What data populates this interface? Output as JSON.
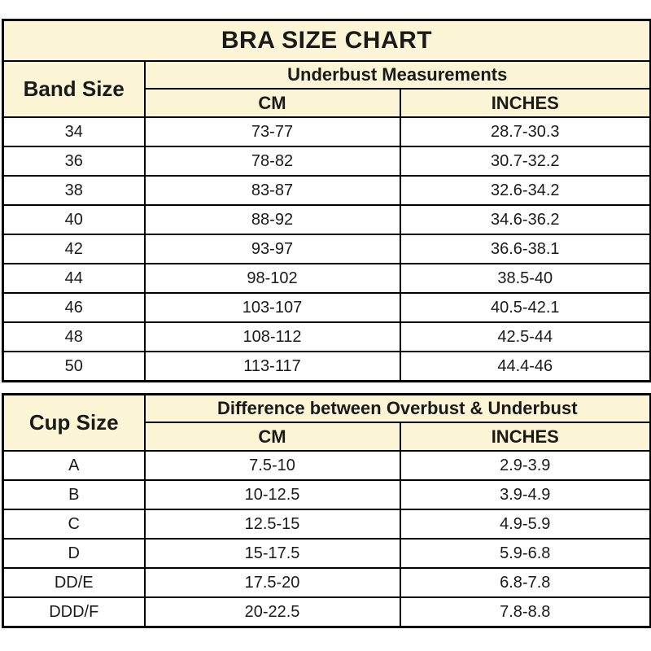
{
  "colors": {
    "header_fill": "#FBF5D6",
    "border": "#000000",
    "text": "#1a1a1a",
    "background": "#ffffff"
  },
  "band_table": {
    "title": "BRA SIZE CHART",
    "row_header": "Band Size",
    "group_header": "Underbust Measurements",
    "col_cm": "CM",
    "col_inches": "INCHES",
    "rows": [
      {
        "band": "34",
        "cm": "73-77",
        "inches": "28.7-30.3"
      },
      {
        "band": "36",
        "cm": "78-82",
        "inches": "30.7-32.2"
      },
      {
        "band": "38",
        "cm": "83-87",
        "inches": "32.6-34.2"
      },
      {
        "band": "40",
        "cm": "88-92",
        "inches": "34.6-36.2"
      },
      {
        "band": "42",
        "cm": "93-97",
        "inches": "36.6-38.1"
      },
      {
        "band": "44",
        "cm": "98-102",
        "inches": "38.5-40"
      },
      {
        "band": "46",
        "cm": "103-107",
        "inches": "40.5-42.1"
      },
      {
        "band": "48",
        "cm": "108-112",
        "inches": "42.5-44"
      },
      {
        "band": "50",
        "cm": "113-117",
        "inches": "44.4-46"
      }
    ]
  },
  "cup_table": {
    "row_header": "Cup Size",
    "group_header": "Difference between Overbust & Underbust",
    "col_cm": "CM",
    "col_inches": "INCHES",
    "rows": [
      {
        "cup": "A",
        "cm": "7.5-10",
        "inches": "2.9-3.9"
      },
      {
        "cup": "B",
        "cm": "10-12.5",
        "inches": "3.9-4.9"
      },
      {
        "cup": "C",
        "cm": "12.5-15",
        "inches": "4.9-5.9"
      },
      {
        "cup": "D",
        "cm": "15-17.5",
        "inches": "5.9-6.8"
      },
      {
        "cup": "DD/E",
        "cm": "17.5-20",
        "inches": "6.8-7.8"
      },
      {
        "cup": "DDD/F",
        "cm": "20-22.5",
        "inches": "7.8-8.8"
      }
    ]
  },
  "chart_data": [
    {
      "type": "table",
      "title": "BRA SIZE CHART",
      "section": "Underbust Measurements",
      "columns": [
        "Band Size",
        "CM",
        "INCHES"
      ],
      "rows": [
        [
          "34",
          "73-77",
          "28.7-30.3"
        ],
        [
          "36",
          "78-82",
          "30.7-32.2"
        ],
        [
          "38",
          "83-87",
          "32.6-34.2"
        ],
        [
          "40",
          "88-92",
          "34.6-36.2"
        ],
        [
          "42",
          "93-97",
          "36.6-38.1"
        ],
        [
          "44",
          "98-102",
          "38.5-40"
        ],
        [
          "46",
          "103-107",
          "40.5-42.1"
        ],
        [
          "48",
          "108-112",
          "42.5-44"
        ],
        [
          "50",
          "113-117",
          "44.4-46"
        ]
      ]
    },
    {
      "type": "table",
      "title": "",
      "section": "Difference between Overbust & Underbust",
      "columns": [
        "Cup Size",
        "CM",
        "INCHES"
      ],
      "rows": [
        [
          "A",
          "7.5-10",
          "2.9-3.9"
        ],
        [
          "B",
          "10-12.5",
          "3.9-4.9"
        ],
        [
          "C",
          "12.5-15",
          "4.9-5.9"
        ],
        [
          "D",
          "15-17.5",
          "5.9-6.8"
        ],
        [
          "DD/E",
          "17.5-20",
          "6.8-7.8"
        ],
        [
          "DDD/F",
          "20-22.5",
          "7.8-8.8"
        ]
      ]
    }
  ]
}
